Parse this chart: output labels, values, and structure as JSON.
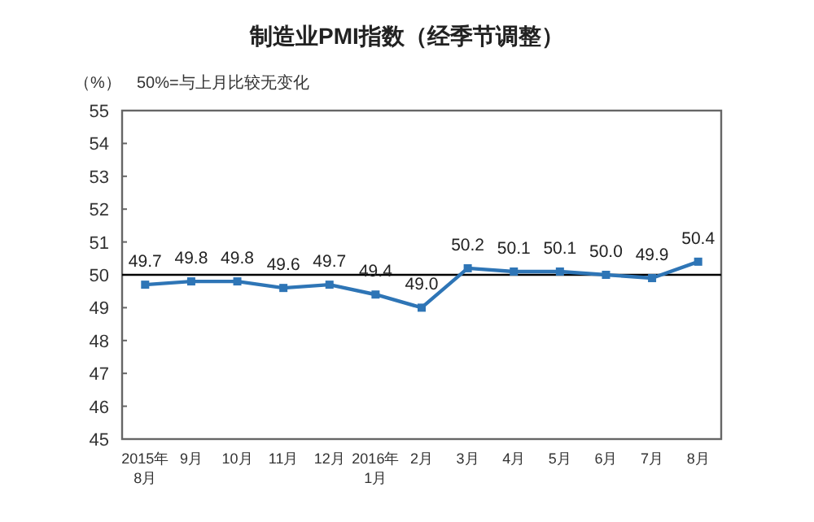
{
  "chart_data": {
    "type": "line",
    "title": "制造业PMI指数（经季节调整）",
    "ylabel": "（%）",
    "annotations": [
      "50%=与上月比较无变化"
    ],
    "categories": [
      "2015年\n8月",
      "9月",
      "10月",
      "11月",
      "12月",
      "2016年\n1月",
      "2月",
      "3月",
      "4月",
      "5月",
      "6月",
      "7月",
      "8月"
    ],
    "series": [
      {
        "color": "#2e75b6",
        "values": [
          49.7,
          49.8,
          49.8,
          49.6,
          49.7,
          49.4,
          49.0,
          50.2,
          50.1,
          50.1,
          50.0,
          49.9,
          50.4
        ],
        "value_labels": [
          "49.7",
          "49.8",
          "49.8",
          "49.6",
          "49.7",
          "49.4",
          "49.0",
          "50.2",
          "50.1",
          "50.1",
          "50.0",
          "49.9",
          "50.4"
        ]
      }
    ],
    "ylim": [
      45,
      55
    ],
    "yticks": [
      45,
      46,
      47,
      48,
      49,
      50,
      51,
      52,
      53,
      54,
      55
    ],
    "ref_lines": [
      {
        "axis": "y",
        "value": 50,
        "color": "#000000"
      }
    ],
    "marker": "square",
    "line_style": "solid"
  }
}
